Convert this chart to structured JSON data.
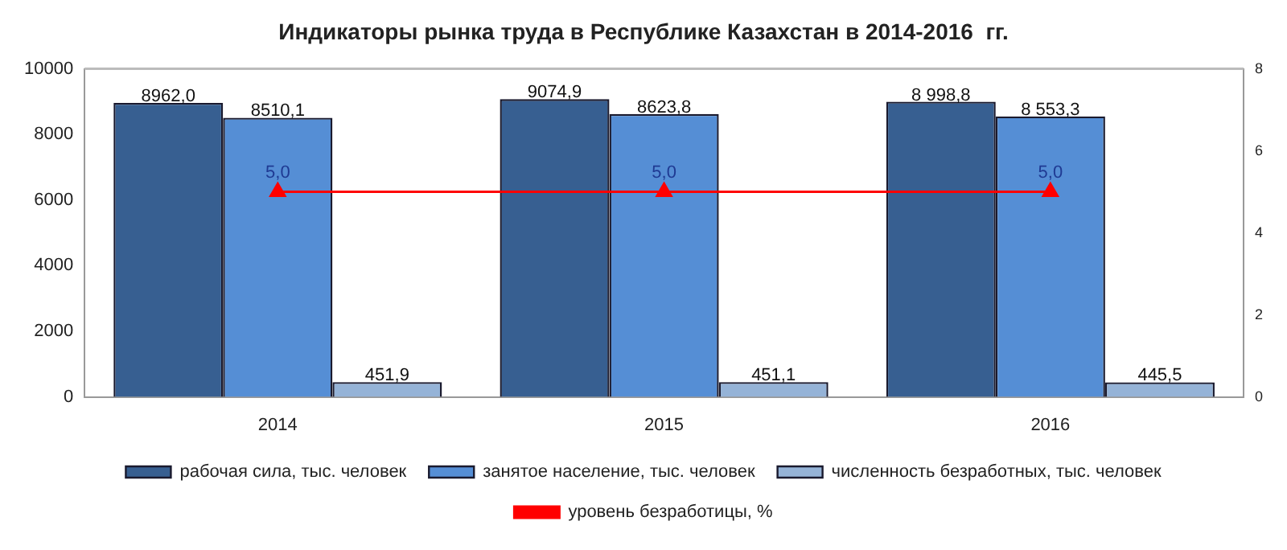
{
  "chart_data": {
    "type": "bar",
    "title": "Индикаторы рынка труда в Республике Казахстан в 2014-2016  гг.",
    "categories": [
      "2014",
      "2015",
      "2016"
    ],
    "series": [
      {
        "name": "рабочая сила, тыс. человек",
        "color": "#375f91",
        "values": [
          8962.0,
          9074.9,
          8998.8
        ],
        "value_labels": [
          "8962,0",
          "9074,9",
          "8 998,8"
        ]
      },
      {
        "name": "занятое население, тыс. человек",
        "color": "#558ed5",
        "values": [
          8510.1,
          8623.8,
          8553.3
        ],
        "value_labels": [
          "8510,1",
          "8623,8",
          "8 553,3"
        ]
      },
      {
        "name": "численность безработных, тыс. человек",
        "color": "#95b3d7",
        "values": [
          451.9,
          451.1,
          445.5
        ],
        "value_labels": [
          "451,9",
          "451,1",
          "445,5"
        ]
      },
      {
        "name": "уровень безработицы, %",
        "type": "line",
        "axis": "y2",
        "color": "#ff0000",
        "marker": "triangle",
        "values": [
          5.0,
          5.0,
          5.0
        ],
        "value_labels": [
          "5,0",
          "5,0",
          "5,0"
        ]
      }
    ],
    "ylim": [
      0,
      10000
    ],
    "yticks": [
      0,
      2000,
      4000,
      6000,
      8000,
      10000
    ],
    "y2lim": [
      0,
      8
    ],
    "y2ticks": [
      0,
      2,
      4,
      6,
      8
    ],
    "grid": false,
    "legend": "bottom"
  }
}
